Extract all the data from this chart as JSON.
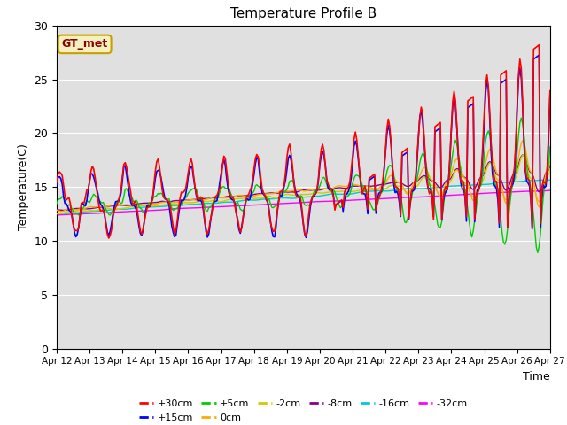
{
  "title": "Temperature Profile B",
  "xlabel": "Time",
  "ylabel": "Temperature(C)",
  "annotation": "GT_met",
  "ylim": [
    0,
    30
  ],
  "xlim": [
    0,
    360
  ],
  "tick_labels": [
    "Apr 12",
    "Apr 13",
    "Apr 14",
    "Apr 15",
    "Apr 16",
    "Apr 17",
    "Apr 18",
    "Apr 19",
    "Apr 20",
    "Apr 21",
    "Apr 22",
    "Apr 23",
    "Apr 24",
    "Apr 25",
    "Apr 26",
    "Apr 27"
  ],
  "tick_positions": [
    0,
    24,
    48,
    72,
    96,
    120,
    144,
    168,
    192,
    216,
    240,
    264,
    288,
    312,
    336,
    360
  ],
  "series_colors": {
    "+30cm": "#ff0000",
    "+15cm": "#0000ff",
    "+5cm": "#00cc00",
    "0cm": "#ffaa00",
    "-2cm": "#cccc00",
    "-8cm": "#880088",
    "-16cm": "#00cccc",
    "-32cm": "#ff00ff"
  },
  "bg_color": "#e0e0e0",
  "fig_bg": "#ffffff",
  "yticks": [
    0,
    5,
    10,
    15,
    20,
    25,
    30
  ]
}
